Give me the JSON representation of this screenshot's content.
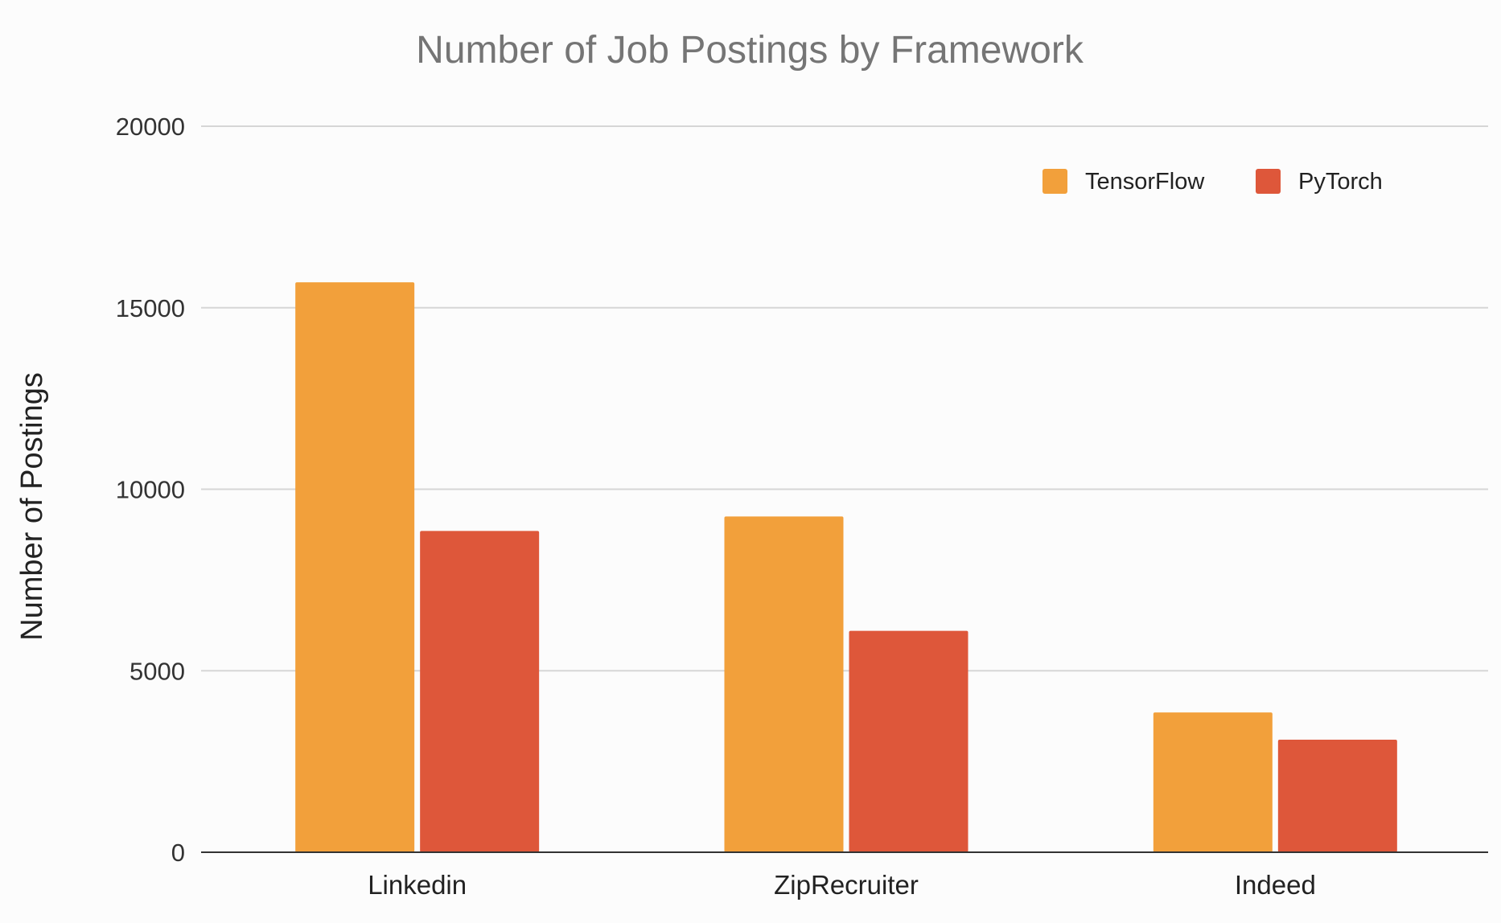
{
  "chart_data": {
    "type": "bar",
    "title": "Number of Job Postings by Framework",
    "xlabel": "",
    "ylabel": "Number of Postings",
    "categories": [
      "Linkedin",
      "ZipRecruiter",
      "Indeed"
    ],
    "series": [
      {
        "name": "TensorFlow",
        "color": "#f2a03b",
        "values": [
          15700,
          9250,
          3850
        ]
      },
      {
        "name": "PyTorch",
        "color": "#de573a",
        "values": [
          8850,
          6100,
          3100
        ]
      }
    ],
    "ylim": [
      0,
      20000
    ],
    "yticks": [
      0,
      5000,
      10000,
      15000,
      20000
    ],
    "grid": true,
    "legend_position": "top-right"
  }
}
